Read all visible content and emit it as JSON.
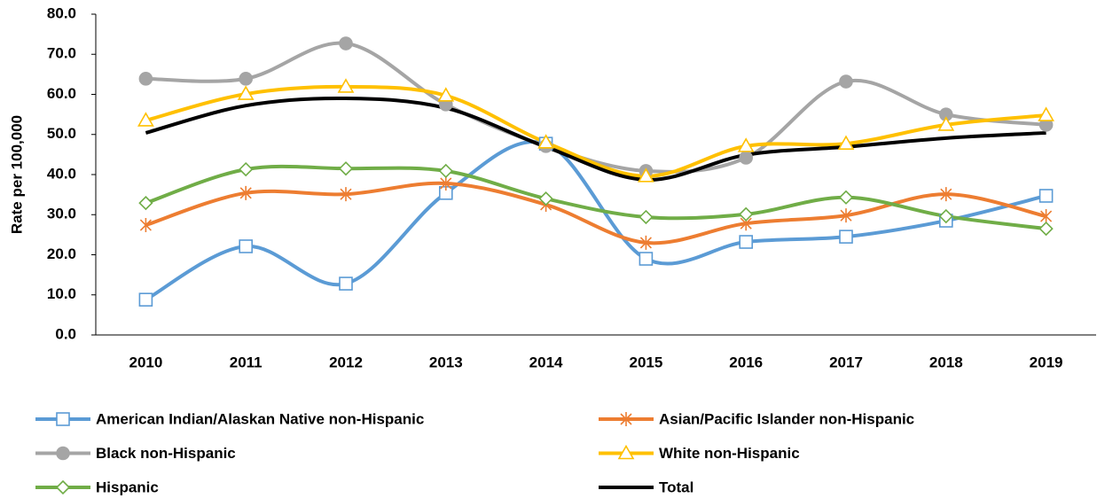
{
  "chart_data": {
    "type": "line",
    "y_label": "Rate per 100,000",
    "categories": [
      "2010",
      "2011",
      "2012",
      "2013",
      "2014",
      "2015",
      "2016",
      "2017",
      "2018",
      "2019"
    ],
    "ylim": [
      0,
      80
    ],
    "yticks": [
      {
        "value": 0,
        "label": "0.0"
      },
      {
        "value": 10,
        "label": "10.0"
      },
      {
        "value": 20,
        "label": "20.0"
      },
      {
        "value": 30,
        "label": "30.0"
      },
      {
        "value": 40,
        "label": "40.0"
      },
      {
        "value": 50,
        "label": "50.0"
      },
      {
        "value": 60,
        "label": "60.0"
      },
      {
        "value": 70,
        "label": "70.0"
      },
      {
        "value": 80,
        "label": "80.0"
      }
    ],
    "smooth": true,
    "series": [
      {
        "name": "American Indian/Alaskan Native non-Hispanic",
        "color": "#5b9bd5",
        "marker": "square",
        "values": [
          8.8,
          22.1,
          12.8,
          35.4,
          47.7,
          19.0,
          23.2,
          24.5,
          28.5,
          34.7
        ]
      },
      {
        "name": "Asian/Pacific Islander non-Hispanic",
        "color": "#ed7d31",
        "marker": "star",
        "values": [
          27.4,
          35.4,
          35.1,
          37.8,
          32.5,
          23.0,
          27.8,
          29.8,
          35.1,
          29.6
        ]
      },
      {
        "name": "Black non-Hispanic",
        "color": "#a5a5a5",
        "marker": "circle",
        "values": [
          63.9,
          63.9,
          72.7,
          57.5,
          47.1,
          40.9,
          44.2,
          63.2,
          55.0,
          52.4
        ]
      },
      {
        "name": "White non-Hispanic",
        "color": "#ffc000",
        "marker": "triangle",
        "values": [
          53.5,
          60.1,
          61.9,
          59.7,
          48.0,
          39.6,
          47.1,
          47.7,
          52.4,
          54.8
        ]
      },
      {
        "name": "Hispanic",
        "color": "#70ad47",
        "marker": "diamond",
        "values": [
          32.9,
          41.3,
          41.5,
          40.9,
          34.0,
          29.4,
          30.1,
          34.3,
          29.6,
          26.5
        ]
      },
      {
        "name": "Total",
        "color": "#000000",
        "marker": "none",
        "values": [
          50.4,
          57.2,
          59.0,
          56.6,
          46.9,
          38.7,
          44.9,
          46.9,
          49.1,
          50.4
        ]
      }
    ]
  }
}
